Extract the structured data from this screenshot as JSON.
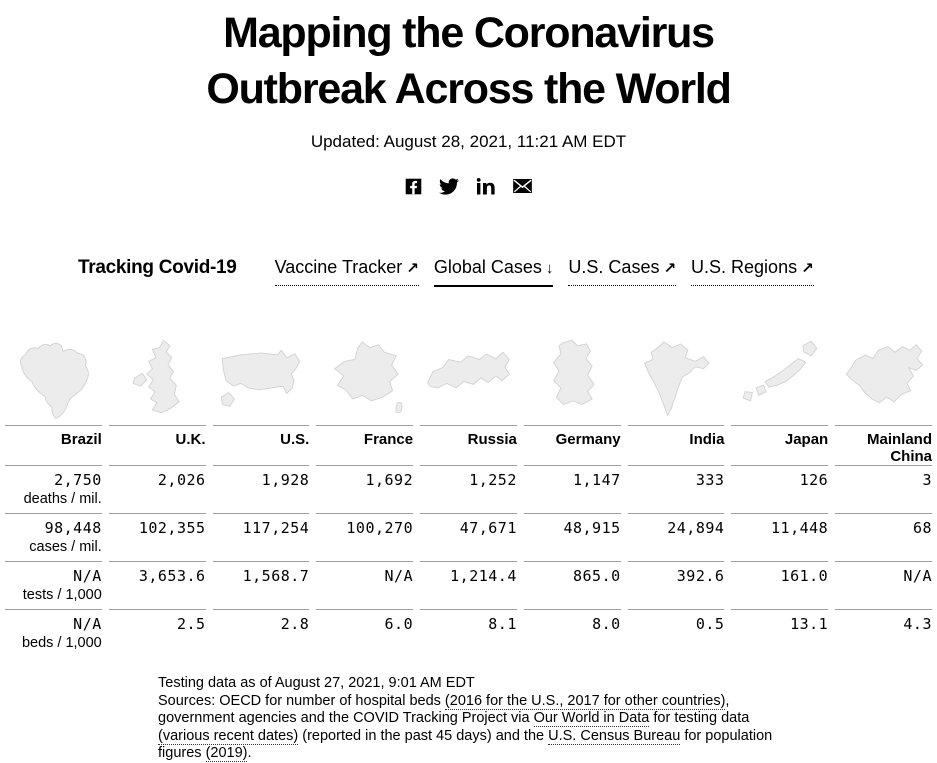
{
  "header": {
    "title_line1": "Mapping the Coronavirus",
    "title_line2": "Outbreak Across the World",
    "updated": "Updated: August 28, 2021, 11:21 AM EDT"
  },
  "social": {
    "buttons": [
      {
        "name": "facebook",
        "icon": "facebook-icon"
      },
      {
        "name": "twitter",
        "icon": "twitter-icon"
      },
      {
        "name": "linkedin",
        "icon": "linkedin-icon"
      },
      {
        "name": "email",
        "icon": "email-icon"
      }
    ]
  },
  "nav": {
    "heading": "Tracking Covid-19",
    "links": [
      {
        "label": "Vaccine Tracker",
        "arrow": "↗",
        "active": false
      },
      {
        "label": "Global Cases",
        "arrow": "↓",
        "active": true
      },
      {
        "label": "U.S. Cases",
        "arrow": "↗",
        "active": false
      },
      {
        "label": "U.S. Regions",
        "arrow": "↗",
        "active": false
      }
    ]
  },
  "table": {
    "columns": [
      {
        "label": "Brazil",
        "icon": "brazil-map-icon",
        "map": "brazil"
      },
      {
        "label": "U.K.",
        "icon": "uk-map-icon",
        "map": "uk"
      },
      {
        "label": "U.S.",
        "icon": "us-map-icon",
        "map": "us"
      },
      {
        "label": "France",
        "icon": "france-map-icon",
        "map": "france"
      },
      {
        "label": "Russia",
        "icon": "russia-map-icon",
        "map": "russia"
      },
      {
        "label": "Germany",
        "icon": "germany-map-icon",
        "map": "germany"
      },
      {
        "label": "India",
        "icon": "india-map-icon",
        "map": "india"
      },
      {
        "label": "Japan",
        "icon": "japan-map-icon",
        "map": "japan"
      },
      {
        "label": "Mainland China",
        "icon": "china-map-icon",
        "map": "china"
      }
    ],
    "rows": [
      {
        "label": "deaths / mil.",
        "values": [
          "2,750",
          "2,026",
          "1,928",
          "1,692",
          "1,252",
          "1,147",
          "333",
          "126",
          "3"
        ]
      },
      {
        "label": "cases / mil.",
        "values": [
          "98,448",
          "102,355",
          "117,254",
          "100,270",
          "47,671",
          "48,915",
          "24,894",
          "11,448",
          "68"
        ]
      },
      {
        "label": "tests / 1,000",
        "values": [
          "N/A",
          "3,653.6",
          "1,568.7",
          "N/A",
          "1,214.4",
          "865.0",
          "392.6",
          "161.0",
          "N/A"
        ]
      },
      {
        "label": "beds / 1,000",
        "values": [
          "N/A",
          "2.5",
          "2.8",
          "6.0",
          "8.1",
          "8.0",
          "0.5",
          "13.1",
          "4.3"
        ]
      }
    ]
  },
  "footer": {
    "line1": "Testing data as of August 27, 2021, 9:01 AM EDT",
    "sources_segments": [
      {
        "text": "Sources: OECD for number of hospital beds ",
        "link": false
      },
      {
        "text": "(2016 for the U.S., 2017 for other countries)",
        "link": true
      },
      {
        "text": ", government agencies and the COVID Tracking Project via ",
        "link": false
      },
      {
        "text": "Our World in Data",
        "link": true
      },
      {
        "text": " for testing data ",
        "link": false
      },
      {
        "text": "(various recent dates)",
        "link": true
      },
      {
        "text": " (reported in the past 45 days) and the ",
        "link": false
      },
      {
        "text": "U.S. Census Bureau",
        "link": true
      },
      {
        "text": " for population figures ",
        "link": false
      },
      {
        "text": "(2019)",
        "link": true
      },
      {
        "text": ".",
        "link": false
      }
    ]
  },
  "colors": {
    "rule": "#9e9e9e",
    "map_fill": "#ececec",
    "map_stroke": "#d2d2d2",
    "text": "#000000"
  }
}
